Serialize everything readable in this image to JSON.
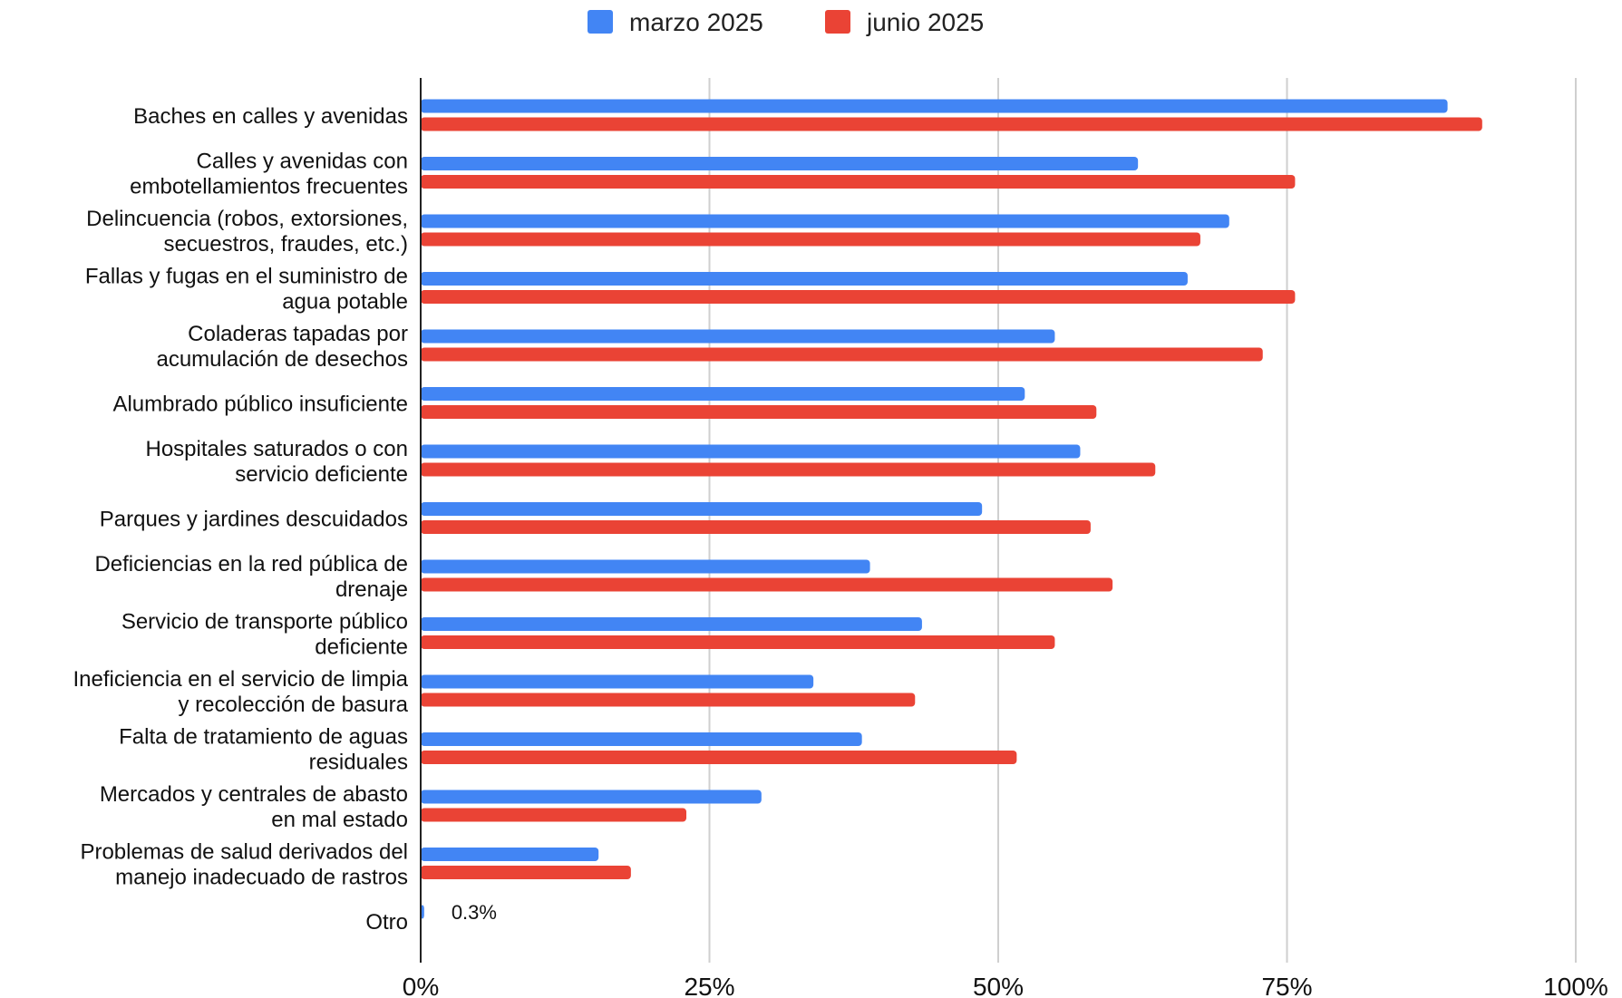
{
  "chart_data": {
    "type": "bar",
    "orientation": "horizontal",
    "legend_position": "top",
    "grid": true,
    "xlim": [
      0,
      100
    ],
    "x_ticks": [
      "0%",
      "25%",
      "50%",
      "75%",
      "100%"
    ],
    "categories": [
      [
        "Baches en calles y avenidas"
      ],
      [
        "Calles y avenidas con",
        "embotellamientos frecuentes"
      ],
      [
        "Delincuencia (robos, extorsiones,",
        "secuestros, fraudes, etc.)"
      ],
      [
        "Fallas y fugas en el suministro de",
        "agua potable"
      ],
      [
        "Coladeras tapadas por",
        "acumulación de desechos"
      ],
      [
        "Alumbrado público insuficiente"
      ],
      [
        "Hospitales saturados o con",
        "servicio deficiente"
      ],
      [
        "Parques y jardines descuidados"
      ],
      [
        "Deficiencias en la red pública de",
        "drenaje"
      ],
      [
        "Servicio de transporte público",
        "deficiente"
      ],
      [
        "Ineficiencia en el servicio de limpia",
        "y recolección de basura"
      ],
      [
        "Falta de tratamiento de aguas",
        "residuales"
      ],
      [
        "Mercados y centrales de abasto",
        "en mal estado"
      ],
      [
        "Problemas de salud derivados del",
        "manejo inadecuado de rastros"
      ],
      [
        "Otro"
      ]
    ],
    "series": [
      {
        "name": "marzo 2025",
        "color": "#4285F4",
        "values": [
          88.9,
          62.1,
          70.0,
          66.4,
          54.9,
          52.3,
          57.1,
          48.6,
          38.9,
          43.4,
          34.0,
          38.2,
          29.5,
          15.4,
          0.3
        ]
      },
      {
        "name": "junio 2025",
        "color": "#EA4335",
        "values": [
          91.9,
          75.7,
          67.5,
          75.7,
          72.9,
          58.5,
          63.6,
          58.0,
          59.9,
          54.9,
          42.8,
          51.6,
          23.0,
          18.2,
          null
        ]
      }
    ],
    "annotations": [
      {
        "series": 0,
        "category": 14,
        "text": "0.3%"
      }
    ]
  }
}
